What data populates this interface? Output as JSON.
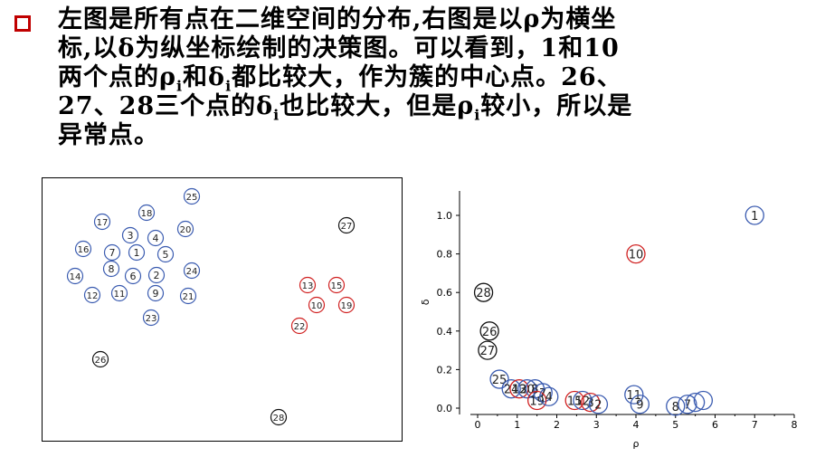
{
  "text": {
    "l1": "左图是所有点在二维空间的分布,右图是以ρ为横坐",
    "l2": "标,以δ为纵坐标绘制的决策图。可以看到，1和10",
    "l3a": "两个点的ρ",
    "l3b": "和δ",
    "l3c": "都比较大，作为簇的中心点。26、",
    "l4a": "27、28三个点的δ",
    "l4b": "也比较大，但是ρ",
    "l4c": "较小，所以是",
    "l5": "异常点。",
    "sub": "i"
  },
  "colors": {
    "blue": "#3a5bb0",
    "red": "#d02020",
    "black": "#111111",
    "bullet": "#c00000"
  },
  "scatter": {
    "points": [
      {
        "id": "25",
        "c": "blue"
      },
      {
        "id": "17",
        "c": "blue"
      },
      {
        "id": "18",
        "c": "blue"
      },
      {
        "id": "20",
        "c": "blue"
      },
      {
        "id": "27",
        "c": "black"
      },
      {
        "id": "3",
        "c": "blue"
      },
      {
        "id": "4",
        "c": "blue"
      },
      {
        "id": "16",
        "c": "blue"
      },
      {
        "id": "7",
        "c": "blue"
      },
      {
        "id": "1",
        "c": "blue"
      },
      {
        "id": "5",
        "c": "blue"
      },
      {
        "id": "8",
        "c": "blue"
      },
      {
        "id": "24",
        "c": "blue"
      },
      {
        "id": "14",
        "c": "blue"
      },
      {
        "id": "6",
        "c": "blue"
      },
      {
        "id": "2",
        "c": "blue"
      },
      {
        "id": "13",
        "c": "red"
      },
      {
        "id": "15",
        "c": "red"
      },
      {
        "id": "12",
        "c": "blue"
      },
      {
        "id": "11",
        "c": "blue"
      },
      {
        "id": "9",
        "c": "blue"
      },
      {
        "id": "21",
        "c": "blue"
      },
      {
        "id": "10",
        "c": "red"
      },
      {
        "id": "19",
        "c": "red"
      },
      {
        "id": "23",
        "c": "blue"
      },
      {
        "id": "22",
        "c": "red"
      },
      {
        "id": "26",
        "c": "black"
      },
      {
        "id": "28",
        "c": "black"
      }
    ]
  },
  "chart_data": {
    "type": "scatter",
    "xlabel": "ρ",
    "ylabel": "δ",
    "xlim": [
      0,
      8
    ],
    "ylim": [
      0,
      1.0
    ],
    "xticks": [
      "0",
      "1",
      "2",
      "3",
      "4",
      "5",
      "6",
      "7",
      "8"
    ],
    "yticks": [
      "0.0",
      "0.2",
      "0.4",
      "0.6",
      "0.8",
      "1.0"
    ],
    "points": [
      {
        "label": "1",
        "x": 7.0,
        "y": 1.0,
        "c": "blue"
      },
      {
        "label": "10",
        "x": 4.0,
        "y": 0.8,
        "c": "red"
      },
      {
        "label": "28",
        "x": 0.15,
        "y": 0.6,
        "c": "black"
      },
      {
        "label": "26",
        "x": 0.3,
        "y": 0.4,
        "c": "black"
      },
      {
        "label": "27",
        "x": 0.25,
        "y": 0.3,
        "c": "black"
      },
      {
        "label": "25",
        "x": 0.55,
        "y": 0.15,
        "c": "blue"
      },
      {
        "label": "24",
        "x": 0.85,
        "y": 0.1,
        "c": "blue"
      },
      {
        "label": "13",
        "x": 1.05,
        "y": 0.1,
        "c": "red"
      },
      {
        "label": "20",
        "x": 1.25,
        "y": 0.1,
        "c": "blue"
      },
      {
        "label": "8",
        "x": 1.45,
        "y": 0.1,
        "c": "blue"
      },
      {
        "label": "7",
        "x": 1.65,
        "y": 0.08,
        "c": "blue"
      },
      {
        "label": "19",
        "x": 1.5,
        "y": 0.04,
        "c": "red"
      },
      {
        "label": "4",
        "x": 1.8,
        "y": 0.06,
        "c": "blue"
      },
      {
        "label": "15",
        "x": 2.45,
        "y": 0.04,
        "c": "red"
      },
      {
        "label": "12",
        "x": 2.65,
        "y": 0.04,
        "c": "blue"
      },
      {
        "label": "3",
        "x": 2.85,
        "y": 0.03,
        "c": "red"
      },
      {
        "label": "2",
        "x": 3.05,
        "y": 0.02,
        "c": "blue"
      },
      {
        "label": "11",
        "x": 3.95,
        "y": 0.07,
        "c": "blue"
      },
      {
        "label": "9",
        "x": 4.1,
        "y": 0.02,
        "c": "blue"
      },
      {
        "label": "8",
        "x": 5.0,
        "y": 0.01,
        "c": "blue"
      },
      {
        "label": "7",
        "x": 5.3,
        "y": 0.02,
        "c": "blue"
      },
      {
        "label": "",
        "x": 5.5,
        "y": 0.03,
        "c": "blue"
      },
      {
        "label": "",
        "x": 5.7,
        "y": 0.04,
        "c": "blue"
      }
    ]
  }
}
